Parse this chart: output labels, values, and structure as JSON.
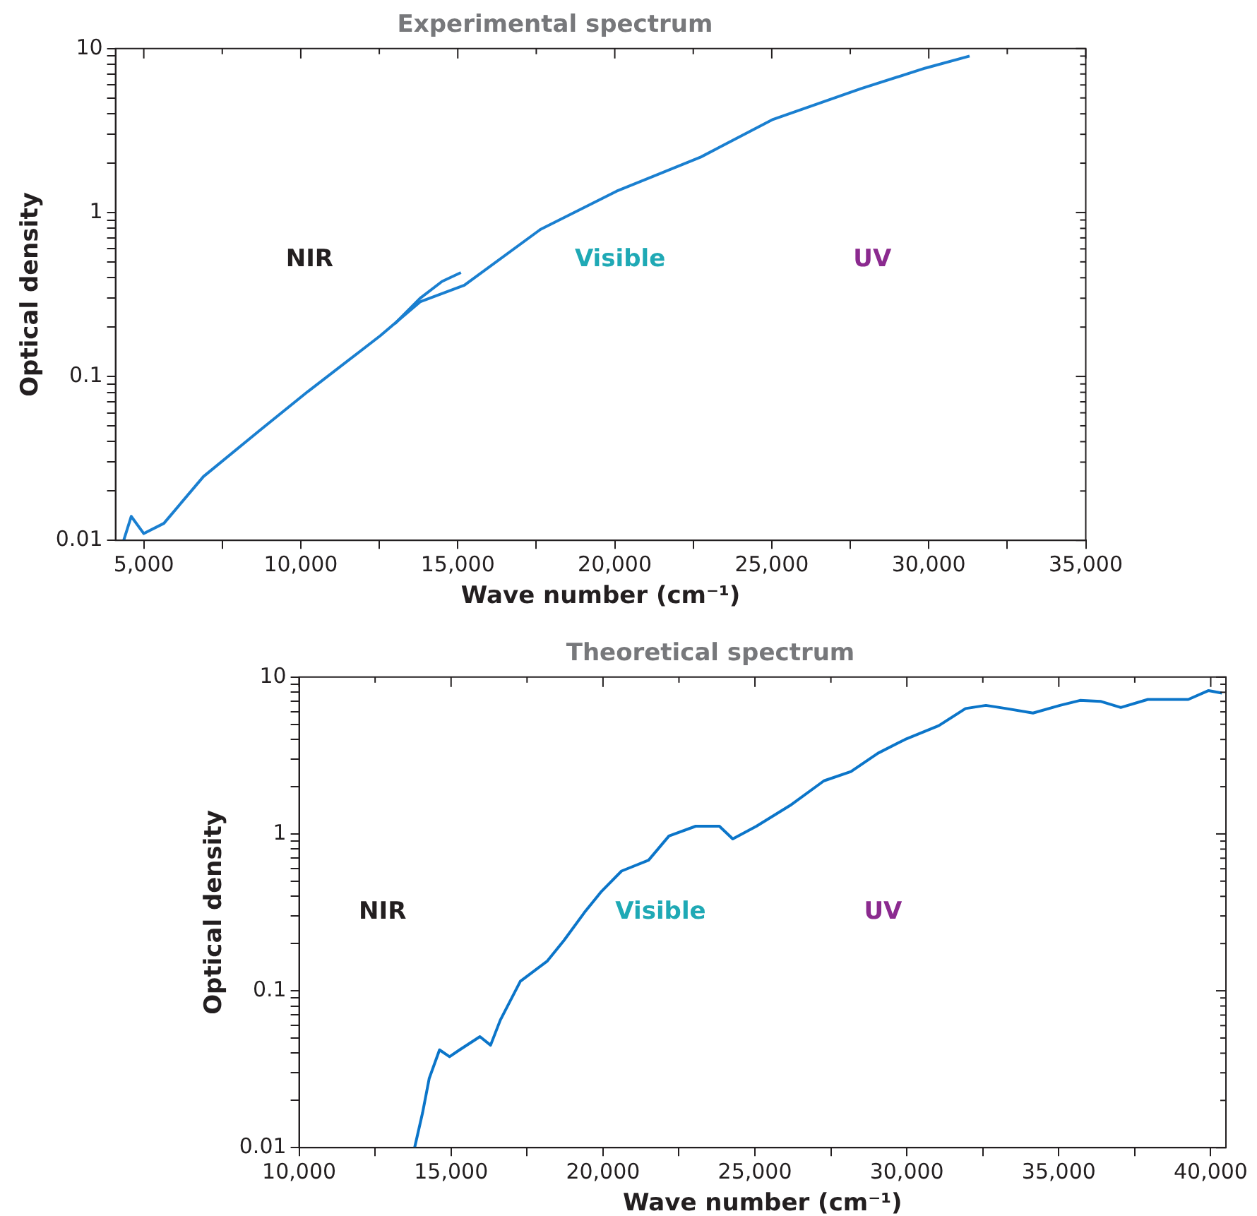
{
  "chart_data": [
    {
      "type": "line",
      "title": "Experimental spectrum",
      "xlabel": "Wave number (cm⁻¹)",
      "ylabel": "Optical density",
      "log": "y",
      "grid": false,
      "legend": false,
      "marker": "none",
      "line_style": "solid",
      "xlim": [
        4100,
        35000
      ],
      "ylim": [
        0.01,
        10
      ],
      "xticks": [
        {
          "value": 5000,
          "label": "5,000"
        },
        {
          "value": 7500,
          "label": null
        },
        {
          "value": 10000,
          "label": "10,000"
        },
        {
          "value": 12500,
          "label": null
        },
        {
          "value": 15000,
          "label": "15,000"
        },
        {
          "value": 17500,
          "label": null
        },
        {
          "value": 20000,
          "label": "20,000"
        },
        {
          "value": 22500,
          "label": null
        },
        {
          "value": 25000,
          "label": "25,000"
        },
        {
          "value": 27500,
          "label": null
        },
        {
          "value": 30000,
          "label": "30,000"
        },
        {
          "value": 32500,
          "label": null
        },
        {
          "value": 35000,
          "label": "35,000"
        }
      ],
      "yticks": [
        0.01,
        {
          "value": 0.02,
          "label": null
        },
        {
          "value": 0.03,
          "label": null
        },
        {
          "value": 0.04,
          "label": null
        },
        {
          "value": 0.05,
          "label": null
        },
        {
          "value": 0.06,
          "label": null
        },
        {
          "value": 0.07,
          "label": null
        },
        {
          "value": 0.08,
          "label": null
        },
        {
          "value": 0.09,
          "label": null
        },
        0.1,
        {
          "value": 0.2,
          "label": null
        },
        {
          "value": 0.3,
          "label": null
        },
        {
          "value": 0.4,
          "label": null
        },
        {
          "value": 0.5,
          "label": null
        },
        {
          "value": 0.6,
          "label": null
        },
        {
          "value": 0.7,
          "label": null
        },
        {
          "value": 0.8,
          "label": null
        },
        {
          "value": 0.9,
          "label": null
        },
        1,
        {
          "value": 2,
          "label": null
        },
        {
          "value": 3,
          "label": null
        },
        {
          "value": 4,
          "label": null
        },
        {
          "value": 5,
          "label": null
        },
        {
          "value": 6,
          "label": null
        },
        {
          "value": 7,
          "label": null
        },
        {
          "value": 8,
          "label": null
        },
        {
          "value": 9,
          "label": null
        },
        10
      ],
      "annotations": [
        "NIR",
        "Visible",
        "UV"
      ],
      "series": [
        {
          "color": "#1a7fd0",
          "x": [
            4360,
            4600,
            5000,
            5640,
            6900,
            8700,
            10230,
            12530,
            13800,
            15210,
            17640,
            20060,
            22740,
            25040,
            27850,
            29890,
            31300
          ],
          "values": [
            0.01,
            0.014,
            0.011,
            0.0127,
            0.0245,
            0.047,
            0.081,
            0.177,
            0.285,
            0.36,
            0.79,
            1.35,
            2.18,
            3.7,
            5.7,
            7.6,
            9.0
          ]
        },
        {
          "color": "#1a7fd0",
          "x": [
            13000,
            13800,
            14500,
            15100
          ],
          "values": [
            0.21,
            0.3,
            0.38,
            0.43
          ]
        }
      ]
    },
    {
      "type": "line",
      "title": "Theoretical spectrum",
      "xlabel": "Wave number (cm⁻¹)",
      "ylabel": "Optical density",
      "log": "y",
      "grid": false,
      "legend": false,
      "marker": "none",
      "line_style": "solid",
      "xlim": [
        10000,
        40500
      ],
      "ylim": [
        0.01,
        10
      ],
      "xticks": [
        {
          "value": 10000,
          "label": "10,000"
        },
        {
          "value": 12500,
          "label": null
        },
        {
          "value": 15000,
          "label": "15,000"
        },
        {
          "value": 17500,
          "label": null
        },
        {
          "value": 20000,
          "label": "20,000"
        },
        {
          "value": 22500,
          "label": null
        },
        {
          "value": 25000,
          "label": "25,000"
        },
        {
          "value": 27500,
          "label": null
        },
        {
          "value": 30000,
          "label": "30,000"
        },
        {
          "value": 32500,
          "label": null
        },
        {
          "value": 35000,
          "label": "35,000"
        },
        {
          "value": 37500,
          "label": null
        },
        {
          "value": 40000,
          "label": "40,000"
        }
      ],
      "yticks": [
        0.01,
        {
          "value": 0.02,
          "label": null
        },
        {
          "value": 0.03,
          "label": null
        },
        {
          "value": 0.04,
          "label": null
        },
        {
          "value": 0.05,
          "label": null
        },
        {
          "value": 0.06,
          "label": null
        },
        {
          "value": 0.07,
          "label": null
        },
        {
          "value": 0.08,
          "label": null
        },
        {
          "value": 0.09,
          "label": null
        },
        0.1,
        {
          "value": 0.2,
          "label": null
        },
        {
          "value": 0.3,
          "label": null
        },
        {
          "value": 0.4,
          "label": null
        },
        {
          "value": 0.5,
          "label": null
        },
        {
          "value": 0.6,
          "label": null
        },
        {
          "value": 0.7,
          "label": null
        },
        {
          "value": 0.8,
          "label": null
        },
        {
          "value": 0.9,
          "label": null
        },
        1,
        {
          "value": 2,
          "label": null
        },
        {
          "value": 3,
          "label": null
        },
        {
          "value": 4,
          "label": null
        },
        {
          "value": 5,
          "label": null
        },
        {
          "value": 6,
          "label": null
        },
        {
          "value": 7,
          "label": null
        },
        {
          "value": 8,
          "label": null
        },
        {
          "value": 9,
          "label": null
        },
        10
      ],
      "annotations": [
        "NIR",
        "Visible",
        "UV"
      ],
      "series": [
        {
          "color": "#0b75c9",
          "x": [
            13800,
            14060,
            14280,
            14620,
            14950,
            15280,
            15950,
            16300,
            16620,
            17280,
            18170,
            18720,
            19390,
            19950,
            20610,
            21500,
            22170,
            23050,
            23830,
            24270,
            25050,
            26160,
            27270,
            28160,
            29050,
            29940,
            31050,
            31930,
            32600,
            33270,
            34150,
            35040,
            35700,
            36370,
            37040,
            37930,
            39260,
            39930,
            40370
          ],
          "values": [
            0.01,
            0.0166,
            0.0276,
            0.042,
            0.038,
            0.042,
            0.051,
            0.045,
            0.065,
            0.115,
            0.155,
            0.21,
            0.316,
            0.43,
            0.58,
            0.68,
            0.97,
            1.12,
            1.12,
            0.93,
            1.12,
            1.52,
            2.18,
            2.5,
            3.27,
            4.0,
            4.9,
            6.3,
            6.6,
            6.3,
            5.9,
            6.6,
            7.1,
            7.0,
            6.4,
            7.2,
            7.2,
            8.2,
            7.9
          ]
        }
      ]
    }
  ]
}
